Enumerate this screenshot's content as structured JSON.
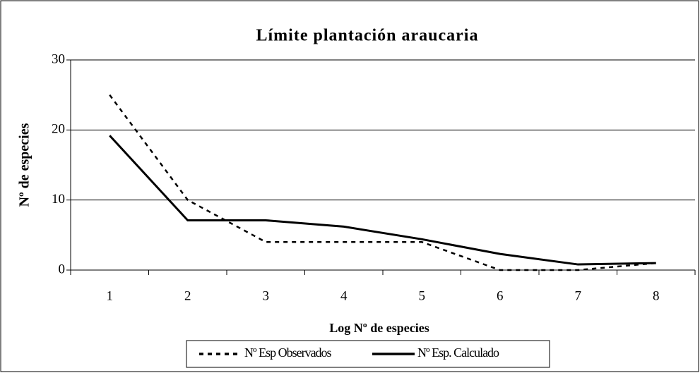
{
  "chart_data": {
    "type": "line",
    "title": "Límite plantación araucaria",
    "x_label": "Log Nº de especies",
    "y_label": "Nº de especies",
    "categories": [
      "1",
      "2",
      "3",
      "4",
      "5",
      "6",
      "7",
      "8"
    ],
    "series": [
      {
        "name": "Nº Esp Observados",
        "color": "#000000",
        "style": "dashed",
        "values": [
          25,
          10,
          4,
          4,
          4,
          0,
          0,
          1
        ]
      },
      {
        "name": "Nº Esp. Calculado",
        "color": "#000000",
        "style": "solid",
        "values": [
          19.2,
          7.1,
          7.1,
          6.2,
          4.4,
          2.3,
          0.8,
          1.0
        ]
      }
    ],
    "ylim": [
      0,
      30
    ],
    "yticks": [
      0,
      10,
      20,
      30
    ],
    "grid": true,
    "legend": "bottom"
  }
}
